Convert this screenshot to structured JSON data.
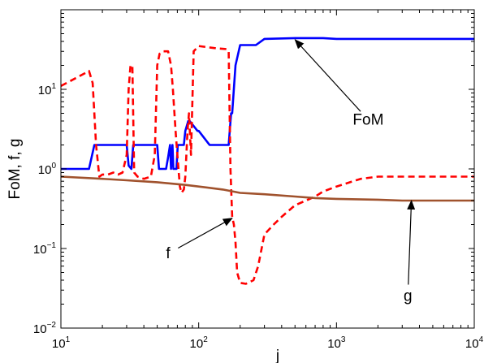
{
  "chart_data": {
    "type": "line",
    "xscale": "log",
    "yscale": "log",
    "xlim": [
      10,
      10000
    ],
    "ylim": [
      0.01,
      100
    ],
    "xlabel": "j",
    "ylabel": "FoM, f, g",
    "grid": false,
    "legend": "none",
    "xticks": [
      {
        "value": 10,
        "base": "10",
        "exp": "1"
      },
      {
        "value": 100,
        "base": "10",
        "exp": "2"
      },
      {
        "value": 1000,
        "base": "10",
        "exp": "3"
      },
      {
        "value": 10000,
        "base": "10",
        "exp": "4"
      }
    ],
    "yticks": [
      {
        "value": 0.01,
        "base": "10",
        "exp": "−2"
      },
      {
        "value": 0.1,
        "base": "10",
        "exp": "−1"
      },
      {
        "value": 1,
        "base": "10",
        "exp": "0"
      },
      {
        "value": 10,
        "base": "10",
        "exp": "1"
      }
    ],
    "series": [
      {
        "key": "FoM",
        "color": "#0000ff",
        "dash": "solid",
        "x": [
          10,
          16,
          17.5,
          30,
          31,
          32.5,
          33.5,
          50,
          51.5,
          58,
          60,
          62,
          63,
          64.5,
          65.5,
          69,
          70.5,
          78,
          80,
          84,
          86,
          98,
          100,
          120,
          165,
          168,
          172,
          175,
          185,
          200,
          260,
          300,
          500,
          800,
          1000,
          2000,
          5000,
          10000
        ],
        "y": [
          1.0,
          1.0,
          2.0,
          2.0,
          1.1,
          1.0,
          2.0,
          2.0,
          1.0,
          1.0,
          1.4,
          2.0,
          1.0,
          2.0,
          1.0,
          1.0,
          2.0,
          2.0,
          3.0,
          4.0,
          4.0,
          3.0,
          3.0,
          2.0,
          2.0,
          3.0,
          5.0,
          5.0,
          20,
          36,
          36,
          43,
          44,
          44,
          43,
          43,
          43,
          43
        ]
      },
      {
        "key": "f",
        "color": "#ff0000",
        "dash": "dashed",
        "x": [
          10,
          15,
          16,
          17,
          18,
          19,
          20,
          22,
          24,
          26,
          28,
          30,
          31,
          32,
          33,
          34,
          36,
          40,
          45,
          48,
          50,
          52,
          55,
          60,
          63,
          65,
          68,
          70,
          73,
          75,
          78,
          80,
          83,
          85,
          88,
          92,
          100,
          130,
          160,
          165,
          170,
          175,
          180,
          185,
          190,
          200,
          220,
          250,
          270,
          300,
          350,
          400,
          500,
          600,
          700,
          800,
          1000,
          1500,
          2000,
          3000,
          5000,
          7000,
          10000
        ],
        "y": [
          11,
          16,
          17,
          12,
          2.0,
          0.8,
          0.85,
          0.85,
          0.9,
          0.85,
          0.9,
          1.5,
          10,
          20,
          20,
          0.9,
          0.8,
          0.75,
          0.8,
          1.5,
          20,
          28,
          30,
          30,
          20,
          10,
          3,
          1.5,
          0.6,
          0.5,
          0.55,
          0.8,
          3.0,
          5.0,
          1.5,
          30,
          35,
          33,
          32,
          30,
          1.0,
          0.25,
          0.2,
          0.12,
          0.05,
          0.037,
          0.036,
          0.04,
          0.06,
          0.15,
          0.2,
          0.25,
          0.35,
          0.4,
          0.45,
          0.52,
          0.6,
          0.75,
          0.8,
          0.8,
          0.8,
          0.8,
          0.8
        ]
      },
      {
        "key": "g",
        "color": "#a0522d",
        "dash": "solid",
        "x": [
          10,
          20,
          30,
          50,
          80,
          100,
          150,
          200,
          300,
          500,
          700,
          1000,
          2000,
          3000,
          5000,
          10000
        ],
        "y": [
          0.8,
          0.75,
          0.72,
          0.68,
          0.63,
          0.6,
          0.55,
          0.5,
          0.48,
          0.45,
          0.43,
          0.42,
          0.41,
          0.4,
          0.4,
          0.4
        ]
      }
    ],
    "annotations": [
      {
        "text": "FoM",
        "series": "FoM",
        "text_x": 1700,
        "text_y": 3.6,
        "arrow_x": 500,
        "arrow_y": 42
      },
      {
        "text": "f",
        "series": "f",
        "text_x": 60,
        "text_y": 0.075,
        "arrow_x": 175,
        "arrow_y": 0.24
      },
      {
        "text": "g",
        "series": "g",
        "text_x": 3300,
        "text_y": 0.022,
        "arrow_x": 3500,
        "arrow_y": 0.4
      }
    ]
  }
}
